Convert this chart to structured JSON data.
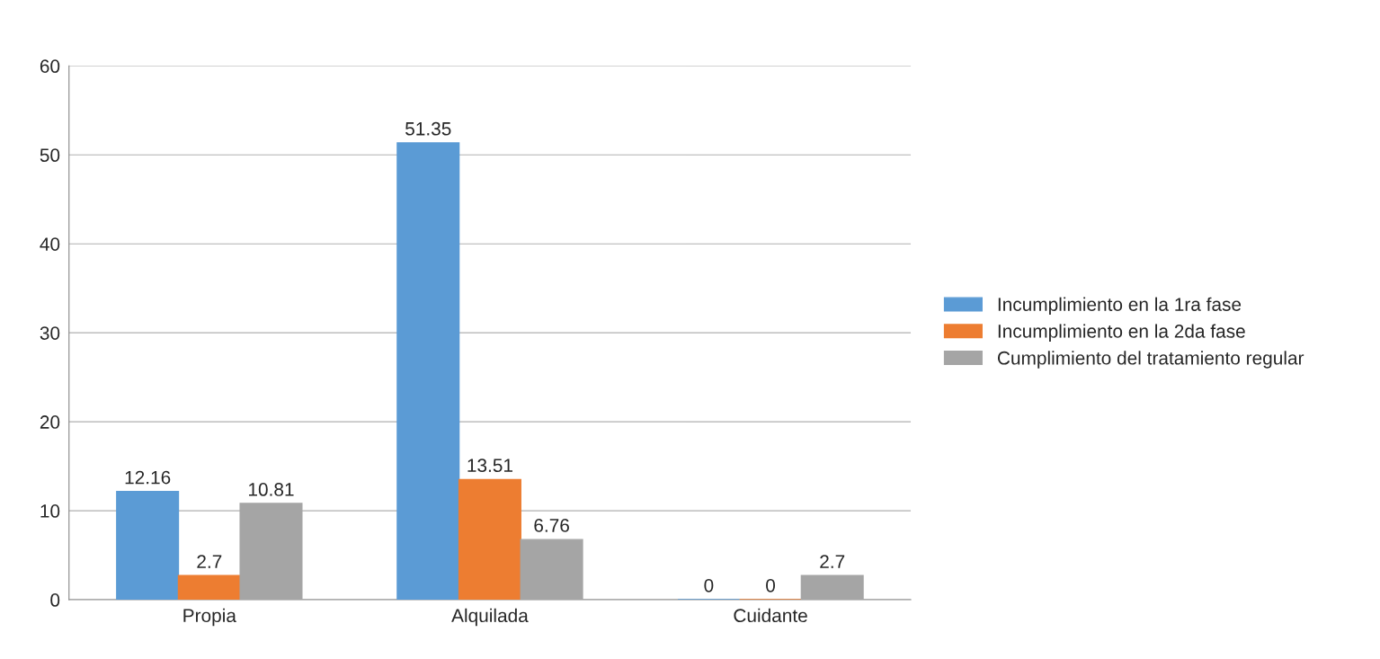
{
  "chart_data": {
    "type": "bar",
    "categories": [
      "Propia",
      "Alquilada",
      "Cuidante"
    ],
    "series": [
      {
        "name": "Incumplimiento en la 1ra fase",
        "color": "#5b9bd5",
        "values": [
          12.16,
          51.35,
          0
        ]
      },
      {
        "name": "Incumplimiento en la 2da fase",
        "color": "#ed7d31",
        "values": [
          2.7,
          13.51,
          0
        ]
      },
      {
        "name": "Cumplimiento del tratamiento regular",
        "color": "#a5a5a5",
        "values": [
          10.81,
          6.76,
          2.7
        ]
      }
    ],
    "ylim": [
      0,
      60
    ],
    "yticks": [
      0,
      10,
      20,
      30,
      40,
      50,
      60
    ],
    "grid": "y",
    "legend": "right",
    "data_labels": true
  }
}
